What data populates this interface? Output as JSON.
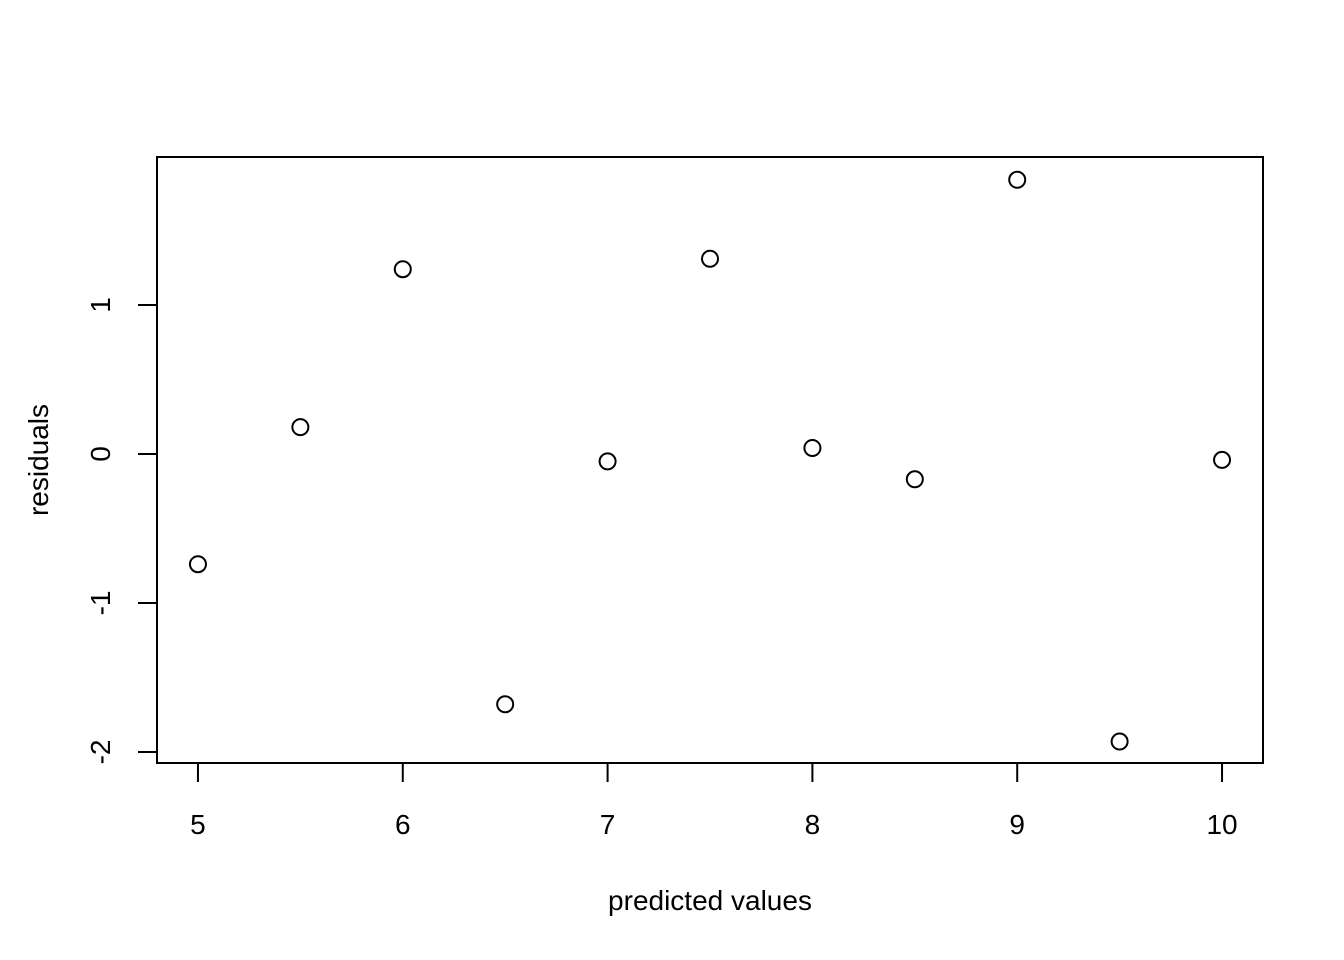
{
  "chart_data": {
    "type": "scatter",
    "xlabel": "predicted values",
    "ylabel": "residuals",
    "x": [
      5,
      5.5,
      6,
      6.5,
      7,
      7.5,
      8,
      8.5,
      9,
      9.5,
      10
    ],
    "values": [
      -0.74,
      0.18,
      1.24,
      -1.68,
      -0.05,
      1.31,
      0.04,
      -0.17,
      1.84,
      -1.93,
      -0.04
    ],
    "color": "#000000",
    "xlim": [
      4.8,
      10.2
    ],
    "ylim": [
      -2.074,
      1.993
    ],
    "xticks": [
      5,
      6,
      7,
      8,
      9,
      10
    ],
    "yticks": [
      -2,
      -1,
      0,
      1
    ]
  }
}
